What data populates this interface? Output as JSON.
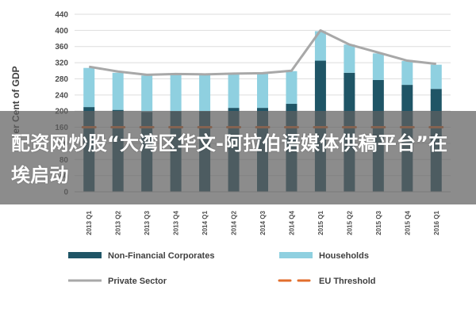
{
  "chart_data": {
    "type": "bar",
    "stacked": true,
    "categories": [
      "2013 Q1",
      "2013 Q2",
      "2013 Q3",
      "2013 Q4",
      "2014 Q1",
      "2014 Q2",
      "2014 Q3",
      "2014 Q4",
      "2015 Q1",
      "2015 Q2",
      "2015 Q3",
      "2015 Q4",
      "2016 Q1"
    ],
    "series": [
      {
        "name": "Non-Financial Corporates",
        "kind": "bar",
        "color": "#1f5566",
        "values": [
          210,
          203,
          198,
          200,
          200,
          208,
          208,
          218,
          325,
          295,
          277,
          265,
          255
        ]
      },
      {
        "name": "Households",
        "kind": "bar",
        "color": "#8fd0e0",
        "values": [
          97,
          92,
          90,
          90,
          90,
          85,
          86,
          81,
          73,
          70,
          66,
          59,
          60
        ]
      },
      {
        "name": "Private Sector",
        "kind": "line",
        "color": "#a8a8a8",
        "values": [
          310,
          298,
          290,
          292,
          291,
          293,
          294,
          300,
          400,
          365,
          345,
          325,
          317
        ]
      },
      {
        "name": "EU Threshold",
        "kind": "dashed-line",
        "color": "#e26e2c",
        "values": [
          160,
          160,
          160,
          160,
          160,
          160,
          160,
          160,
          160,
          160,
          160,
          160,
          160
        ]
      }
    ],
    "title": "",
    "xlabel": "",
    "ylabel": "Per Cent of GDP",
    "ylim": [
      0,
      440
    ],
    "yticks": [
      0,
      40,
      80,
      120,
      160,
      200,
      240,
      280,
      320,
      360,
      400,
      440
    ],
    "grid": true,
    "legend": "bottom"
  },
  "watermark": {
    "text": "配资网炒股“大湾区华文-阿拉伯语媒体供稿平台”在埃启动"
  }
}
